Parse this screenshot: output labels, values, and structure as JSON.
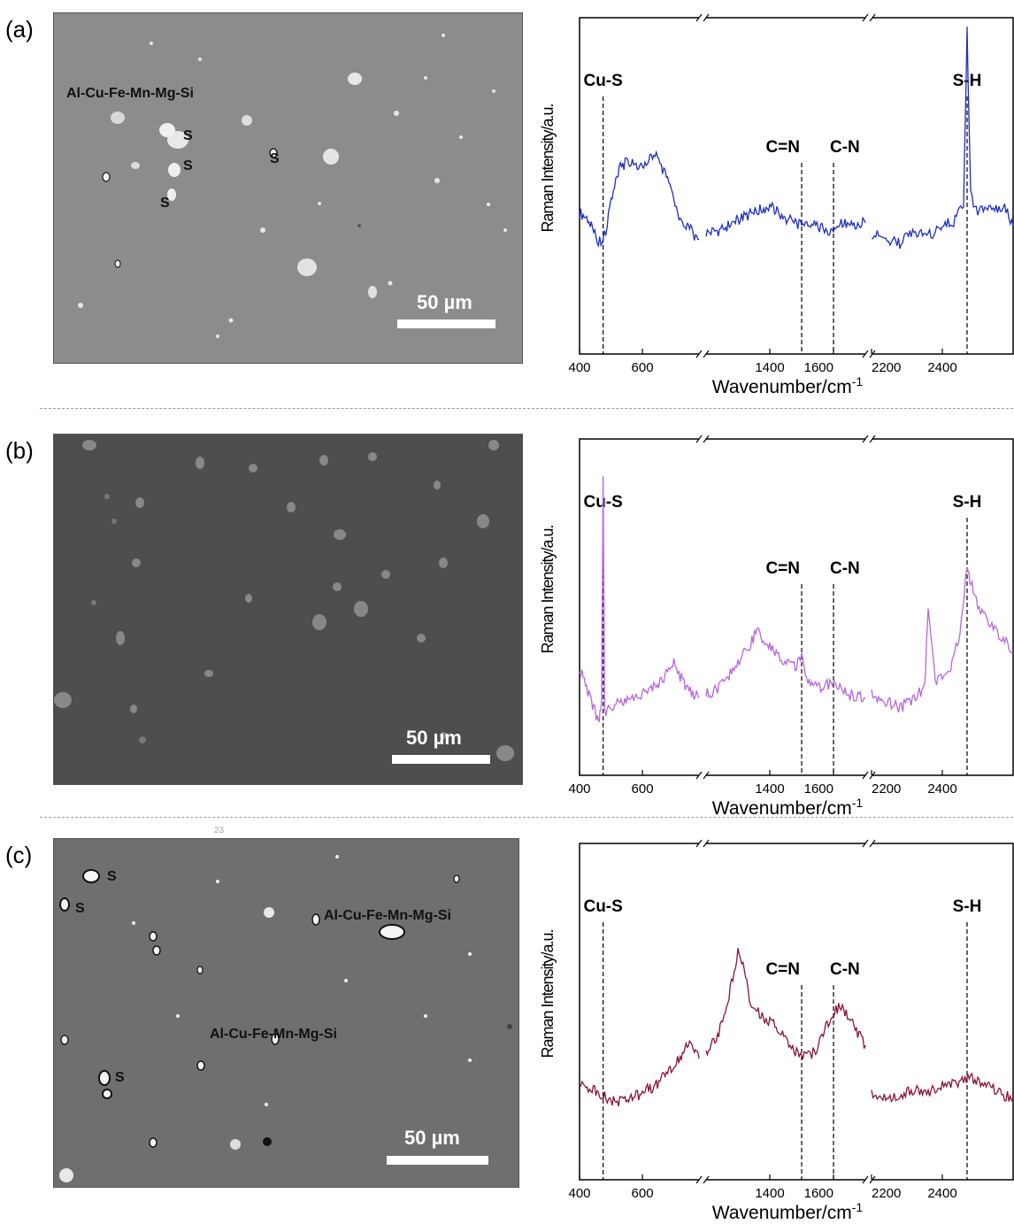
{
  "panels": [
    {
      "label": "(a)",
      "sem": {
        "bg": "#8c8c8c",
        "scale_text": "50 µm",
        "phase_labels": [
          "Al-Cu-Fe-Mn-Mg-Si"
        ],
        "s_label": "S"
      }
    },
    {
      "label": "(b)",
      "sem": {
        "bg": "#4e4e4e",
        "scale_text": "50 µm",
        "phase_labels": [],
        "s_label": ""
      }
    },
    {
      "label": "(c)",
      "sem": {
        "bg": "#6f6f6f",
        "scale_text": "50 µm",
        "phase_labels": [
          "Al-Cu-Fe-Mn-Mg-Si",
          "Al-Cu-Fe-Mn-Mg-Si"
        ],
        "s_label": "S",
        "stray_text": "23"
      }
    }
  ],
  "chart_data": [
    {
      "type": "line",
      "panel": "(a)",
      "xlabel": "Wavenumber/cm",
      "xlabel_sup": "-1",
      "ylabel": "Raman Intensity/a.u.",
      "x_segments": [
        [
          400,
          780
        ],
        [
          1200,
          1700
        ],
        [
          2200,
          2600
        ]
      ],
      "xticks": [
        400,
        600,
        1400,
        1600,
        2200,
        2400
      ],
      "peak_labels": [
        {
          "text": "Cu-S",
          "x": 475
        },
        {
          "text": "C=N",
          "x": 1500
        },
        {
          "text": "C-N",
          "x": 1600
        },
        {
          "text": "S-H",
          "x": 2470
        }
      ],
      "color": "#1f2fbf",
      "series": [
        {
          "segment": 0,
          "x": [
            400,
            430,
            460,
            480,
            500,
            530,
            560,
            600,
            640,
            680,
            720,
            750,
            780
          ],
          "y": [
            0.42,
            0.4,
            0.33,
            0.35,
            0.46,
            0.56,
            0.57,
            0.55,
            0.6,
            0.52,
            0.4,
            0.37,
            0.34
          ]
        },
        {
          "segment": 1,
          "x": [
            1200,
            1250,
            1300,
            1350,
            1400,
            1430,
            1460,
            1500,
            1540,
            1580,
            1620,
            1660,
            1700
          ],
          "y": [
            0.36,
            0.37,
            0.4,
            0.42,
            0.44,
            0.42,
            0.4,
            0.38,
            0.39,
            0.36,
            0.39,
            0.38,
            0.39
          ]
        },
        {
          "segment": 2,
          "x": [
            2200,
            2240,
            2280,
            2320,
            2360,
            2400,
            2440,
            2460,
            2470,
            2480,
            2500,
            2540,
            2580,
            2600
          ],
          "y": [
            0.36,
            0.34,
            0.33,
            0.36,
            0.35,
            0.38,
            0.4,
            0.45,
            0.96,
            0.47,
            0.42,
            0.44,
            0.43,
            0.38
          ]
        }
      ]
    },
    {
      "type": "line",
      "panel": "(b)",
      "xlabel": "Wavenumber/cm",
      "xlabel_sup": "-1",
      "ylabel": "Raman Intensity/a.u.",
      "x_segments": [
        [
          400,
          780
        ],
        [
          1200,
          1700
        ],
        [
          2200,
          2600
        ]
      ],
      "xticks": [
        400,
        600,
        1400,
        1600,
        2200,
        2400
      ],
      "peak_labels": [
        {
          "text": "Cu-S",
          "x": 475
        },
        {
          "text": "C=N",
          "x": 1500
        },
        {
          "text": "C-N",
          "x": 1600
        },
        {
          "text": "S-H",
          "x": 2470
        }
      ],
      "color": "#b866e0",
      "series": [
        {
          "segment": 0,
          "x": [
            400,
            430,
            460,
            470,
            475,
            480,
            500,
            540,
            580,
            620,
            660,
            700,
            740,
            780
          ],
          "y": [
            0.32,
            0.24,
            0.16,
            0.22,
            0.88,
            0.18,
            0.2,
            0.22,
            0.24,
            0.25,
            0.28,
            0.33,
            0.26,
            0.23
          ]
        },
        {
          "segment": 1,
          "x": [
            1200,
            1240,
            1280,
            1320,
            1360,
            1400,
            1440,
            1480,
            1500,
            1520,
            1560,
            1600,
            1640,
            1700
          ],
          "y": [
            0.24,
            0.26,
            0.31,
            0.36,
            0.43,
            0.38,
            0.34,
            0.32,
            0.36,
            0.28,
            0.26,
            0.28,
            0.24,
            0.23
          ]
        },
        {
          "segment": 2,
          "x": [
            2200,
            2240,
            2280,
            2320,
            2350,
            2360,
            2380,
            2420,
            2450,
            2470,
            2480,
            2500,
            2540,
            2580,
            2600
          ],
          "y": [
            0.24,
            0.22,
            0.2,
            0.23,
            0.26,
            0.5,
            0.28,
            0.3,
            0.42,
            0.62,
            0.58,
            0.5,
            0.44,
            0.4,
            0.36
          ]
        }
      ]
    },
    {
      "type": "line",
      "panel": "(c)",
      "xlabel": "Wavenumber/cm",
      "xlabel_sup": "-1",
      "ylabel": "Raman Intensity/a.u.",
      "x_segments": [
        [
          400,
          780
        ],
        [
          1200,
          1700
        ],
        [
          2200,
          2600
        ]
      ],
      "xticks": [
        400,
        600,
        1400,
        1600,
        2200,
        2400
      ],
      "peak_labels": [
        {
          "text": "Cu-S",
          "x": 475
        },
        {
          "text": "C=N",
          "x": 1500
        },
        {
          "text": "C-N",
          "x": 1600
        },
        {
          "text": "S-H",
          "x": 2470
        }
      ],
      "color": "#8a1538",
      "series": [
        {
          "segment": 0,
          "x": [
            400,
            440,
            480,
            520,
            560,
            600,
            640,
            680,
            720,
            750,
            780
          ],
          "y": [
            0.28,
            0.27,
            0.25,
            0.23,
            0.24,
            0.26,
            0.28,
            0.32,
            0.36,
            0.42,
            0.36
          ]
        },
        {
          "segment": 1,
          "x": [
            1200,
            1240,
            1280,
            1300,
            1320,
            1340,
            1380,
            1420,
            1460,
            1500,
            1540,
            1580,
            1620,
            1660,
            1700
          ],
          "y": [
            0.38,
            0.44,
            0.58,
            0.68,
            0.62,
            0.52,
            0.48,
            0.46,
            0.4,
            0.36,
            0.38,
            0.46,
            0.52,
            0.46,
            0.4
          ]
        },
        {
          "segment": 2,
          "x": [
            2200,
            2240,
            2280,
            2320,
            2360,
            2400,
            2440,
            2480,
            2520,
            2560,
            2600
          ],
          "y": [
            0.25,
            0.24,
            0.25,
            0.27,
            0.26,
            0.28,
            0.29,
            0.3,
            0.29,
            0.26,
            0.24
          ]
        }
      ]
    }
  ]
}
